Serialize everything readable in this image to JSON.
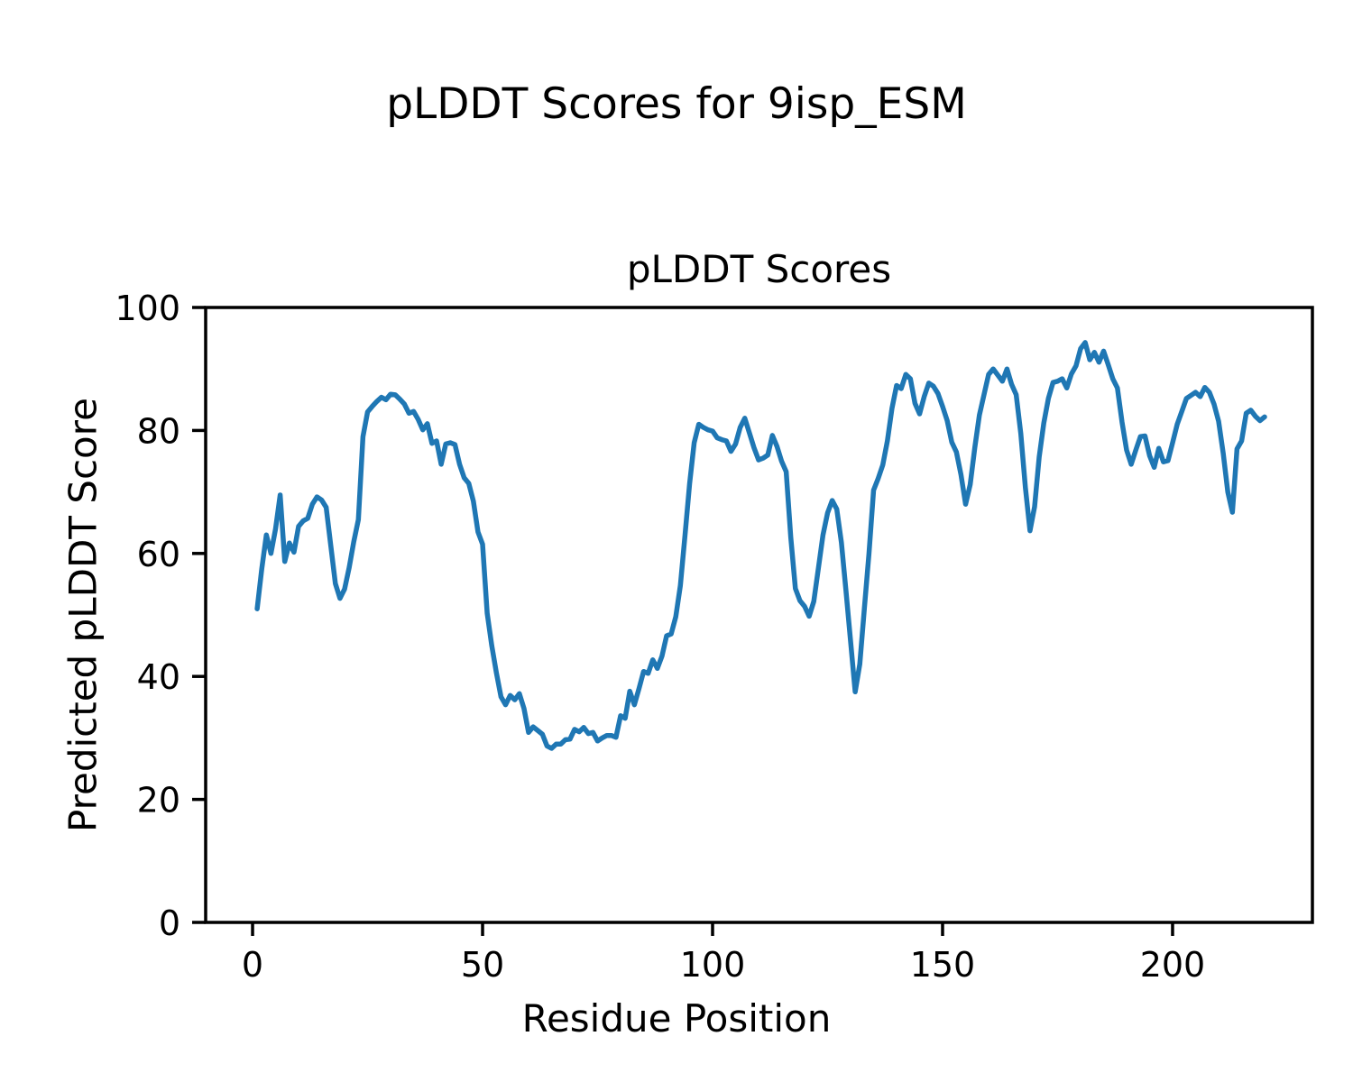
{
  "figure": {
    "suptitle": "pLDDT Scores for 9isp_ESM",
    "background": "#ffffff"
  },
  "chart_data": {
    "type": "line",
    "title": "pLDDT Scores",
    "xlabel": "Residue Position",
    "ylabel": "Predicted pLDDT Score",
    "xlim": [
      -10.2,
      230.4
    ],
    "ylim": [
      0,
      100
    ],
    "xticks": [
      0,
      50,
      100,
      150,
      200
    ],
    "yticks": [
      0,
      20,
      40,
      60,
      80,
      100
    ],
    "grid": false,
    "legend_position": "none",
    "line_color": "#1f77b4",
    "line_width": 5.5,
    "axis_color": "#000000",
    "series": [
      {
        "name": "pLDDT",
        "x_start": 1,
        "x_step": 1,
        "values": [
          51.0,
          57.5,
          63.0,
          60.0,
          64.0,
          69.5,
          58.7,
          61.7,
          60.2,
          64.4,
          65.3,
          65.7,
          68.0,
          69.2,
          68.7,
          67.5,
          61.3,
          55.1,
          52.7,
          54.2,
          57.7,
          61.9,
          65.5,
          79.0,
          83.0,
          83.9,
          84.7,
          85.4,
          85.0,
          85.9,
          85.8,
          85.1,
          84.3,
          82.8,
          83.1,
          81.8,
          80.1,
          81.1,
          77.9,
          78.3,
          74.5,
          77.8,
          78.0,
          77.7,
          74.5,
          72.3,
          71.4,
          68.5,
          63.5,
          61.5,
          50.3,
          45.0,
          40.6,
          36.7,
          35.4,
          36.9,
          36.2,
          37.2,
          34.8,
          30.9,
          31.8,
          31.2,
          30.6,
          28.7,
          28.3,
          29.0,
          29.0,
          29.7,
          29.8,
          31.4,
          31.0,
          31.7,
          30.7,
          30.9,
          29.5,
          30.0,
          30.4,
          30.4,
          30.1,
          33.6,
          33.2,
          37.6,
          35.4,
          38.0,
          40.8,
          40.5,
          42.7,
          41.3,
          43.3,
          46.6,
          46.9,
          49.7,
          54.8,
          62.9,
          71.3,
          78.0,
          81.0,
          80.5,
          80.1,
          79.9,
          78.8,
          78.5,
          78.3,
          76.6,
          77.8,
          80.5,
          82.0,
          79.6,
          77.2,
          75.2,
          75.5,
          76.0,
          79.2,
          77.4,
          75.0,
          73.3,
          62.6,
          54.3,
          52.3,
          51.4,
          49.8,
          52.2,
          57.6,
          63.0,
          66.6,
          68.6,
          67.2,
          61.8,
          53.9,
          45.7,
          37.5,
          42.0,
          51.1,
          60.0,
          70.3,
          72.2,
          74.4,
          78.3,
          83.6,
          87.3,
          86.8,
          89.1,
          88.4,
          84.4,
          82.7,
          85.5,
          87.7,
          87.2,
          86.0,
          83.9,
          81.6,
          78.1,
          76.5,
          72.8,
          68.0,
          71.2,
          77.2,
          82.5,
          85.8,
          89.1,
          90.0,
          89.0,
          88.0,
          90.0,
          87.5,
          85.8,
          79.5,
          70.7,
          63.7,
          67.6,
          75.7,
          81.2,
          85.2,
          87.8,
          88.0,
          88.4,
          86.9,
          89.2,
          90.5,
          93.3,
          94.3,
          91.5,
          92.7,
          91.1,
          92.9,
          90.7,
          88.4,
          86.9,
          81.4,
          76.8,
          74.5,
          76.8,
          79.0,
          79.1,
          75.9,
          74.0,
          77.1,
          74.9,
          75.1,
          78.0,
          81.0,
          83.1,
          85.2,
          85.7,
          86.2,
          85.5,
          87.0,
          86.2,
          84.3,
          81.5,
          76.3,
          70.0,
          66.7,
          77.0,
          78.3,
          82.8,
          83.3,
          82.3,
          81.6,
          82.2
        ]
      }
    ]
  }
}
